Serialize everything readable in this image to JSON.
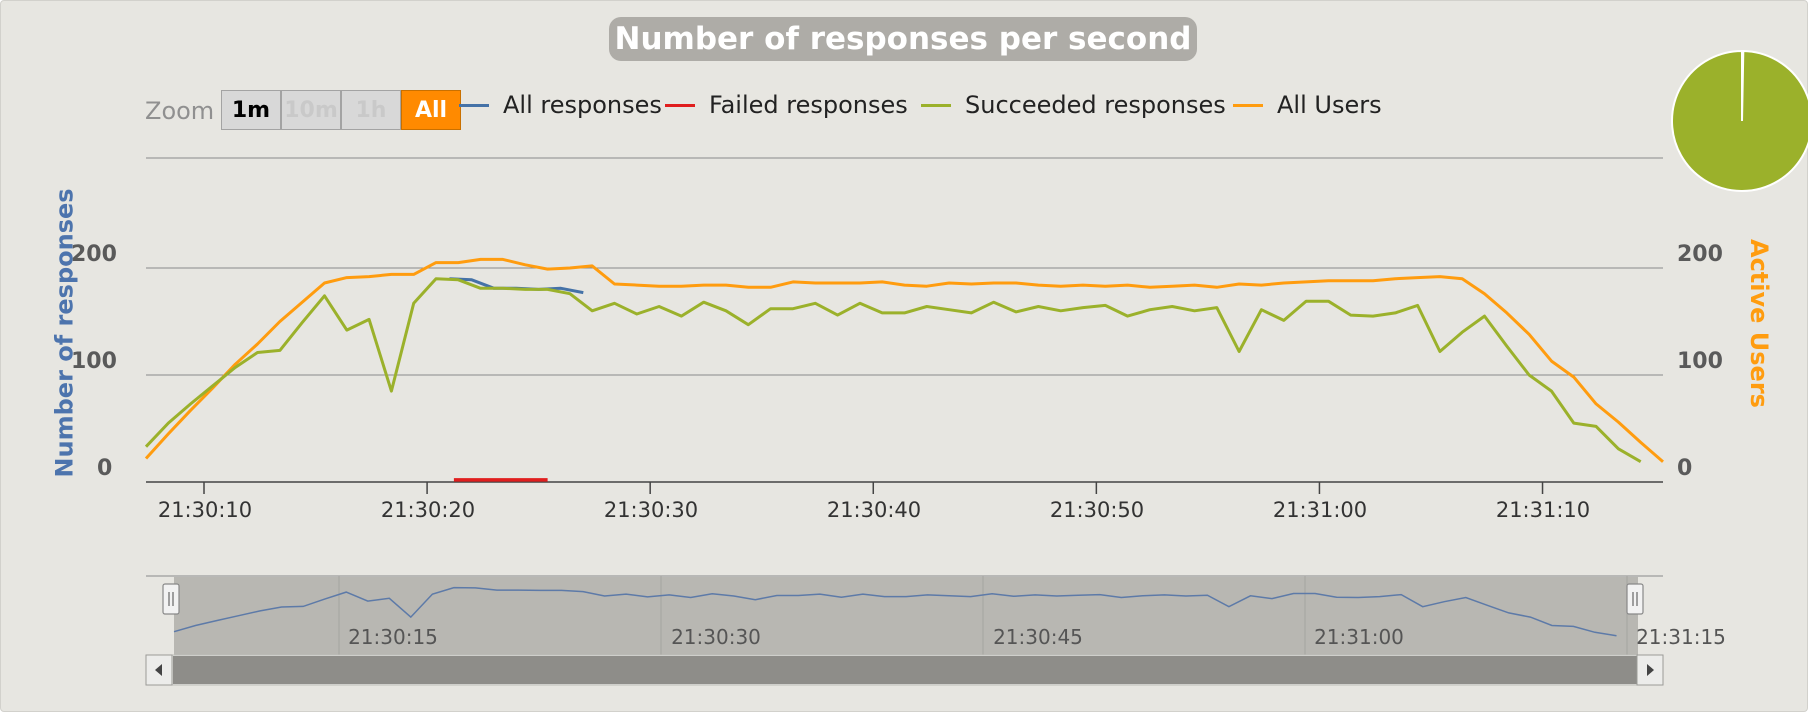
{
  "colors": {
    "all_responses": "#4572a7",
    "failed": "#e01e1e",
    "succeeded": "#9bb12b",
    "users": "#ff9c0f",
    "left_axis": "#4d74ad",
    "right_axis": "#ff9c0f",
    "pie": "#9bb12b"
  },
  "zoom": {
    "label": "Zoom",
    "buttons": [
      "1m",
      "10m",
      "1h",
      "All"
    ],
    "active": "All"
  },
  "chart_data": {
    "type": "line",
    "title": "Number of responses per second",
    "ylabel": "Number of responses",
    "y2label": "Active Users",
    "ylim": [
      0,
      200
    ],
    "y2lim": [
      0,
      200
    ],
    "yticks": [
      "0",
      "100",
      "200"
    ],
    "y2ticks": [
      "0",
      "100",
      "200"
    ],
    "xticks": [
      "21:30:10",
      "21:30:20",
      "21:30:30",
      "21:30:40",
      "21:30:50",
      "21:31:00",
      "21:31:10"
    ],
    "xrange_seconds": [
      7.4,
      75.4
    ],
    "grid": true,
    "legend_placement": "top",
    "series": [
      {
        "name": "All responses",
        "x": [
          21,
          22,
          23,
          24,
          25,
          26,
          27
        ],
        "values": [
          190,
          189,
          181,
          181,
          180,
          181,
          177
        ]
      },
      {
        "name": "Failed responses",
        "x": [
          21.2,
          25.4
        ],
        "values": [
          2,
          2
        ]
      },
      {
        "name": "Succeeded responses",
        "x": [
          7.4,
          8.4,
          9.4,
          10.4,
          11.4,
          12.4,
          13.4,
          14.4,
          15.4,
          16.4,
          17.4,
          18.4,
          19.4,
          20.4,
          21.4,
          22.4,
          23.4,
          24.4,
          25.4,
          26.4,
          27.4,
          28.4,
          29.4,
          30.4,
          31.4,
          32.4,
          33.4,
          34.4,
          35.4,
          36.4,
          37.4,
          38.4,
          39.4,
          40.4,
          41.4,
          42.4,
          43.4,
          44.4,
          45.4,
          46.4,
          47.4,
          48.4,
          49.4,
          50.4,
          51.4,
          52.4,
          53.4,
          54.4,
          55.4,
          56.4,
          57.4,
          58.4,
          59.4,
          60.4,
          61.4,
          62.4,
          63.4,
          64.4,
          65.4,
          66.4,
          67.4,
          68.4,
          69.4,
          70.4,
          71.4,
          72.4,
          73.4,
          74.4
        ],
        "values": [
          33,
          55,
          73,
          90,
          107,
          121,
          123,
          149,
          174,
          142,
          152,
          85,
          167,
          190,
          189,
          181,
          181,
          180,
          180,
          176,
          160,
          167,
          157,
          164,
          155,
          168,
          160,
          147,
          162,
          162,
          167,
          156,
          167,
          158,
          158,
          164,
          161,
          158,
          168,
          159,
          164,
          160,
          163,
          165,
          155,
          161,
          164,
          160,
          163,
          122,
          161,
          151,
          169,
          169,
          156,
          155,
          158,
          165,
          122,
          140,
          155,
          127,
          100,
          85,
          55,
          52,
          31,
          19
        ]
      },
      {
        "name": "All Users",
        "x": [
          7.4,
          8.4,
          9.4,
          10.4,
          11.4,
          12.4,
          13.4,
          14.4,
          15.4,
          16.4,
          17.4,
          18.4,
          19.4,
          20.4,
          21.4,
          22.4,
          23.4,
          24.4,
          25.4,
          26.4,
          27.4,
          28.4,
          29.4,
          30.4,
          31.4,
          32.4,
          33.4,
          34.4,
          35.4,
          36.4,
          37.4,
          38.4,
          39.4,
          40.4,
          41.4,
          42.4,
          43.4,
          44.4,
          45.4,
          46.4,
          47.4,
          48.4,
          49.4,
          50.4,
          51.4,
          52.4,
          53.4,
          54.4,
          55.4,
          56.4,
          57.4,
          58.4,
          59.4,
          60.4,
          61.4,
          62.4,
          63.4,
          64.4,
          65.4,
          66.4,
          67.4,
          68.4,
          69.4,
          70.4,
          71.4,
          72.4,
          73.4,
          74.4,
          75.4
        ],
        "values": [
          22,
          45,
          67,
          88,
          110,
          129,
          150,
          168,
          186,
          191,
          192,
          194,
          194,
          205,
          205,
          208,
          208,
          203,
          199,
          200,
          202,
          185,
          184,
          183,
          183,
          184,
          184,
          182,
          182,
          187,
          186,
          186,
          186,
          187,
          184,
          183,
          186,
          185,
          186,
          186,
          184,
          183,
          184,
          183,
          184,
          182,
          183,
          184,
          182,
          185,
          184,
          186,
          187,
          188,
          188,
          188,
          190,
          191,
          192,
          190,
          176,
          158,
          138,
          113,
          98,
          73,
          56,
          37,
          19
        ]
      }
    ],
    "pie": {
      "segments": [
        {
          "name": "Failed responses",
          "value": 0.3
        },
        {
          "name": "Succeeded responses",
          "value": 99.7
        }
      ]
    },
    "navigator": {
      "xticks": [
        "21:30:15",
        "21:30:30",
        "21:30:45",
        "21:31:00",
        "21:31:15"
      ],
      "xrange_seconds": [
        7.4,
        75.4
      ]
    }
  }
}
